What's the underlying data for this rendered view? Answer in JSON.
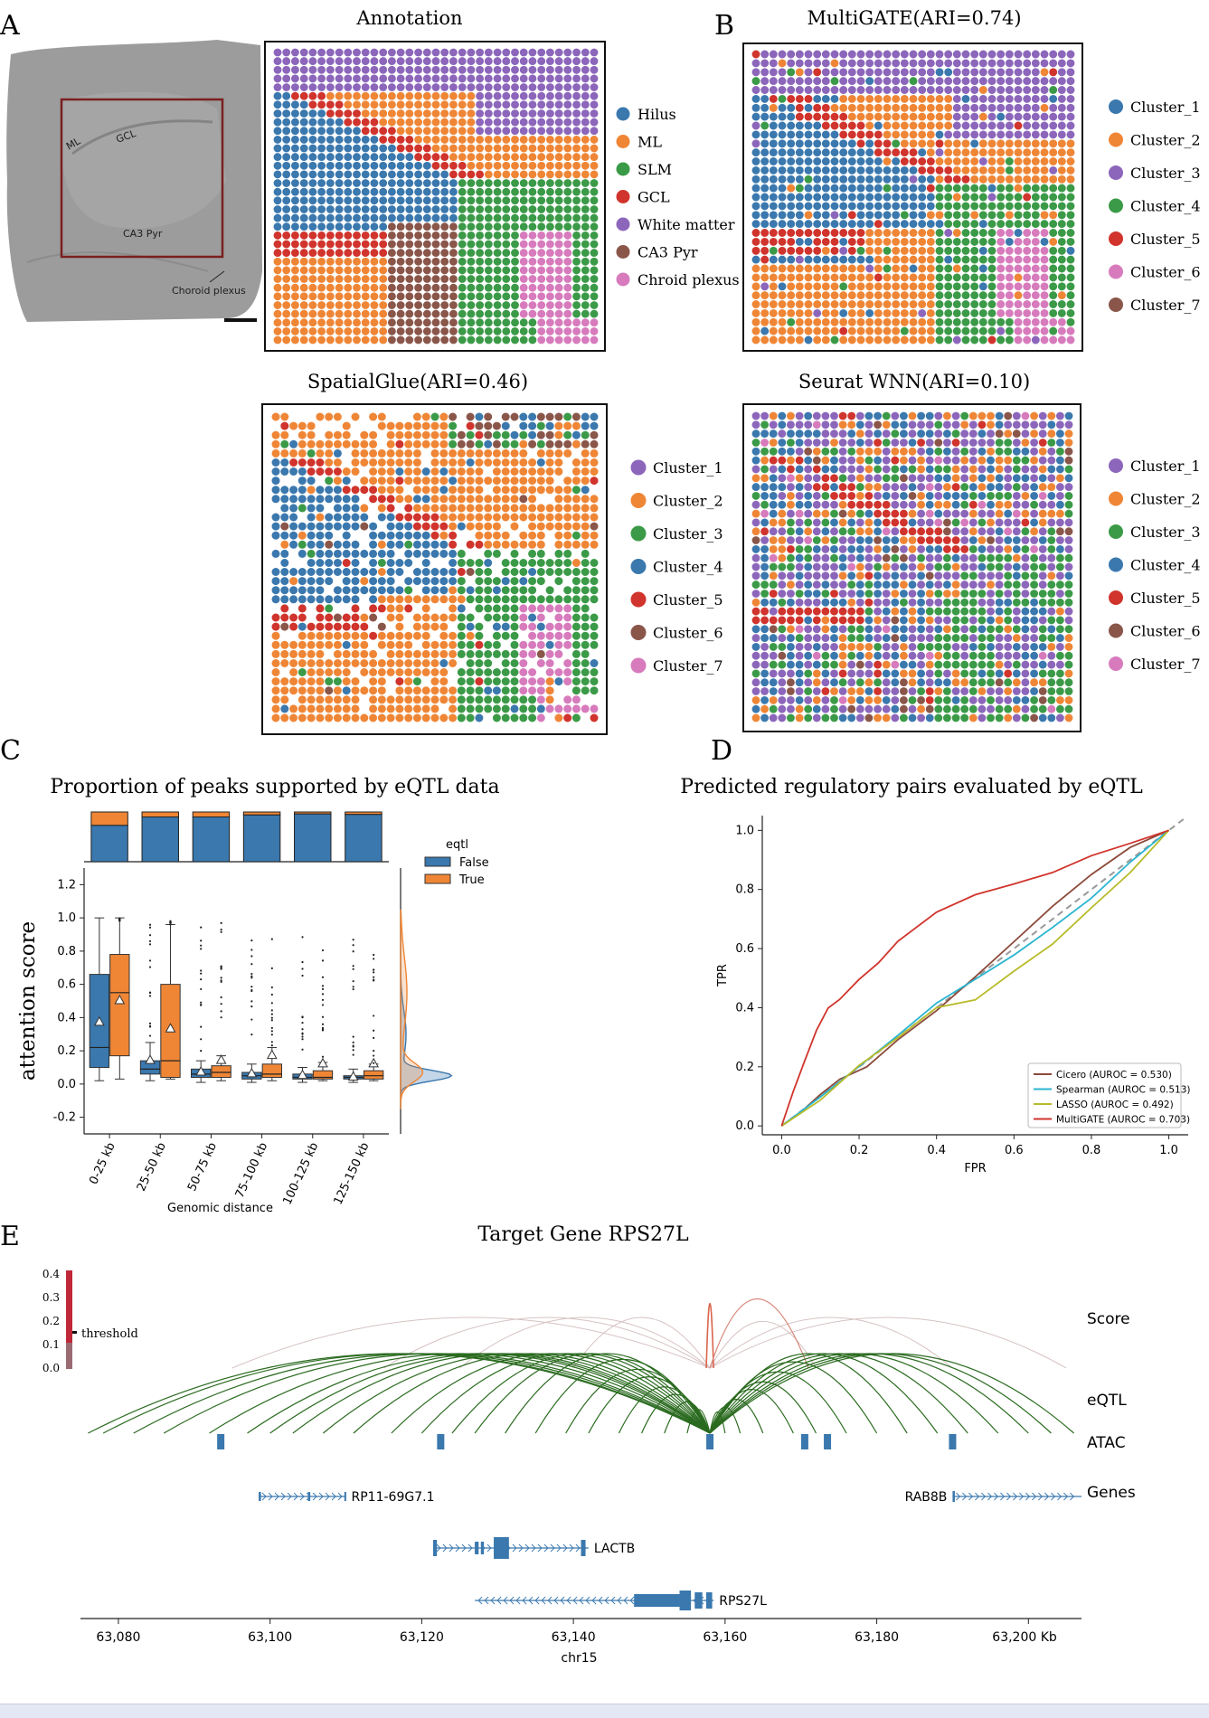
{
  "colors": {
    "blue": "#3a78ae",
    "orange": "#ef8636",
    "green": "#3b9a47",
    "red": "#d0342c",
    "purple": "#8c66bb",
    "brown": "#8a564a",
    "pink": "#d77bbd",
    "eqtl_green": "#2b6b20",
    "cyan": "#2bb5d0",
    "olive": "#b8bb2a",
    "brown_line": "#8c4a3a"
  },
  "panel_labels": {
    "a": "A",
    "b": "B",
    "c": "C",
    "d": "D",
    "e": "E"
  },
  "panel_a": {
    "title": "Annotation",
    "histology_labels": [
      "ML",
      "GCL",
      "CA3 Pyr",
      "Choroid plexus"
    ],
    "legend": [
      {
        "label": "Hilus",
        "color": "blue"
      },
      {
        "label": "ML",
        "color": "orange"
      },
      {
        "label": "SLM",
        "color": "green"
      },
      {
        "label": "GCL",
        "color": "red"
      },
      {
        "label": "White matter",
        "color": "purple"
      },
      {
        "label": "CA3 Pyr",
        "color": "brown"
      },
      {
        "label": "Chroid plexus",
        "color": "pink"
      }
    ]
  },
  "panel_b": {
    "title": "MultiGATE(ARI=0.74)",
    "legend": [
      {
        "label": "Cluster_1",
        "color": "blue"
      },
      {
        "label": "Cluster_2",
        "color": "orange"
      },
      {
        "label": "Cluster_3",
        "color": "purple"
      },
      {
        "label": "Cluster_4",
        "color": "green"
      },
      {
        "label": "Cluster_5",
        "color": "red"
      },
      {
        "label": "Cluster_6",
        "color": "pink"
      },
      {
        "label": "Cluster_7",
        "color": "brown"
      }
    ]
  },
  "panel_spatialglue": {
    "title": "SpatialGlue(ARI=0.46)",
    "legend": [
      {
        "label": "Cluster_1",
        "color": "purple"
      },
      {
        "label": "Cluster_2",
        "color": "orange"
      },
      {
        "label": "Cluster_3",
        "color": "green"
      },
      {
        "label": "Cluster_4",
        "color": "blue"
      },
      {
        "label": "Cluster_5",
        "color": "red"
      },
      {
        "label": "Cluster_6",
        "color": "brown"
      },
      {
        "label": "Cluster_7",
        "color": "pink"
      }
    ]
  },
  "panel_seurat": {
    "title": "Seurat WNN(ARI=0.10)",
    "legend": [
      {
        "label": "Cluster_1",
        "color": "purple"
      },
      {
        "label": "Cluster_2",
        "color": "orange"
      },
      {
        "label": "Cluster_3",
        "color": "green"
      },
      {
        "label": "Cluster_4",
        "color": "blue"
      },
      {
        "label": "Cluster_5",
        "color": "red"
      },
      {
        "label": "Cluster_6",
        "color": "brown"
      },
      {
        "label": "Cluster_7",
        "color": "pink"
      }
    ]
  },
  "chart_data": [
    {
      "id": "panel_c",
      "type": "box",
      "title": "Proportion of peaks supported by eQTL data",
      "ylabel": "attention score",
      "xlabel": "Genomic distance",
      "ylim": [
        -0.3,
        1.3
      ],
      "yticks": [
        "-0.2",
        "0.0",
        "0.2",
        "0.4",
        "0.6",
        "0.8",
        "1.0",
        "1.2"
      ],
      "categories": [
        "0-25 kb",
        "25-50 kb",
        "50-75 kb",
        "75-100 kb",
        "100-125 kb",
        "125-150 kb"
      ],
      "legend_title": "eqtl",
      "legend": [
        "False",
        "True"
      ],
      "proportion_true": [
        0.27,
        0.1,
        0.1,
        0.06,
        0.04,
        0.05
      ],
      "boxes": {
        "False": [
          {
            "q1": 0.1,
            "med": 0.22,
            "q3": 0.66,
            "lo": 0.02,
            "hi": 1.0,
            "mean": 0.37
          },
          {
            "q1": 0.06,
            "med": 0.09,
            "q3": 0.14,
            "lo": 0.02,
            "hi": 0.25,
            "mean": 0.14
          },
          {
            "q1": 0.04,
            "med": 0.06,
            "q3": 0.09,
            "lo": 0.01,
            "hi": 0.14,
            "mean": 0.07
          },
          {
            "q1": 0.03,
            "med": 0.05,
            "q3": 0.07,
            "lo": 0.01,
            "hi": 0.12,
            "mean": 0.06
          },
          {
            "q1": 0.03,
            "med": 0.04,
            "q3": 0.06,
            "lo": 0.01,
            "hi": 0.1,
            "mean": 0.05
          },
          {
            "q1": 0.03,
            "med": 0.04,
            "q3": 0.05,
            "lo": 0.01,
            "hi": 0.09,
            "mean": 0.04
          }
        ],
        "True": [
          {
            "q1": 0.17,
            "med": 0.55,
            "q3": 0.78,
            "lo": 0.03,
            "hi": 1.0,
            "mean": 0.5
          },
          {
            "q1": 0.04,
            "med": 0.14,
            "q3": 0.6,
            "lo": 0.03,
            "hi": 0.96,
            "mean": 0.33
          },
          {
            "q1": 0.04,
            "med": 0.07,
            "q3": 0.11,
            "lo": 0.02,
            "hi": 0.17,
            "mean": 0.14
          },
          {
            "q1": 0.04,
            "med": 0.06,
            "q3": 0.12,
            "lo": 0.02,
            "hi": 0.22,
            "mean": 0.17
          },
          {
            "q1": 0.03,
            "med": 0.04,
            "q3": 0.08,
            "lo": 0.02,
            "hi": 0.13,
            "mean": 0.12
          },
          {
            "q1": 0.03,
            "med": 0.05,
            "q3": 0.08,
            "lo": 0.02,
            "hi": 0.12,
            "mean": 0.12
          }
        ]
      }
    },
    {
      "id": "panel_d",
      "type": "line",
      "title": "Predicted regulatory pairs evaluated by eQTL",
      "xlabel": "FPR",
      "ylabel": "TPR",
      "xlim": [
        -0.05,
        1.05
      ],
      "ylim": [
        -0.03,
        1.05
      ],
      "xticks": [
        "0.0",
        "0.2",
        "0.4",
        "0.6",
        "0.8",
        "1.0"
      ],
      "yticks": [
        "0.0",
        "0.2",
        "0.4",
        "0.6",
        "0.8",
        "1.0"
      ],
      "series": [
        {
          "name": "Cicero (AUROC = 0.530)",
          "color": "brown_line",
          "x": [
            0,
            0.05,
            0.1,
            0.15,
            0.22,
            0.3,
            0.4,
            0.5,
            0.6,
            0.7,
            0.8,
            0.9,
            1.0
          ],
          "y": [
            0,
            0.05,
            0.11,
            0.16,
            0.2,
            0.29,
            0.39,
            0.5,
            0.62,
            0.74,
            0.85,
            0.94,
            1.0
          ]
        },
        {
          "name": "Spearman (AUROC = 0.513)",
          "color": "cyan",
          "x": [
            0,
            0.1,
            0.2,
            0.3,
            0.4,
            0.5,
            0.6,
            0.7,
            0.8,
            0.9,
            1.0
          ],
          "y": [
            0,
            0.1,
            0.2,
            0.31,
            0.42,
            0.5,
            0.58,
            0.67,
            0.77,
            0.89,
            1.0
          ]
        },
        {
          "name": "LASSO (AUROC = 0.492)",
          "color": "olive",
          "x": [
            0,
            0.1,
            0.2,
            0.3,
            0.4,
            0.5,
            0.6,
            0.7,
            0.8,
            0.9,
            1.0
          ],
          "y": [
            0,
            0.09,
            0.2,
            0.3,
            0.4,
            0.43,
            0.52,
            0.62,
            0.74,
            0.86,
            1.0
          ]
        },
        {
          "name": "MultiGATE (AUROC = 0.703)",
          "color": "red",
          "x": [
            0,
            0.03,
            0.06,
            0.09,
            0.12,
            0.15,
            0.2,
            0.25,
            0.3,
            0.4,
            0.5,
            0.6,
            0.7,
            0.8,
            0.9,
            1.0
          ],
          "y": [
            0,
            0.12,
            0.22,
            0.32,
            0.4,
            0.43,
            0.5,
            0.55,
            0.62,
            0.72,
            0.78,
            0.82,
            0.86,
            0.91,
            0.96,
            1.0
          ]
        }
      ]
    }
  ],
  "panel_e": {
    "title": "Target Gene RPS27L",
    "score_ticks": [
      "0.4",
      "0.3",
      "0.2",
      "0.1",
      "0.0"
    ],
    "threshold_label": "threshold",
    "track_labels": {
      "score": "Score",
      "eqtl": "eQTL",
      "atac": "ATAC",
      "genes": "Genes"
    },
    "genes": [
      "RP11-69G7.1",
      "RAB8B",
      "LACTB",
      "RPS27L"
    ],
    "xticks": [
      "63,080",
      "63,100",
      "63,120",
      "63,140",
      "63,160",
      "63,180",
      "63,200 Kb"
    ],
    "xtick_values": [
      63080,
      63100,
      63120,
      63140,
      63160,
      63180,
      63200
    ],
    "xlim": [
      63075,
      63207
    ],
    "xlabel": "chr15",
    "atac_peaks": [
      63093.5,
      63122.5,
      63158,
      63170.5,
      63173.5,
      63190
    ]
  }
}
